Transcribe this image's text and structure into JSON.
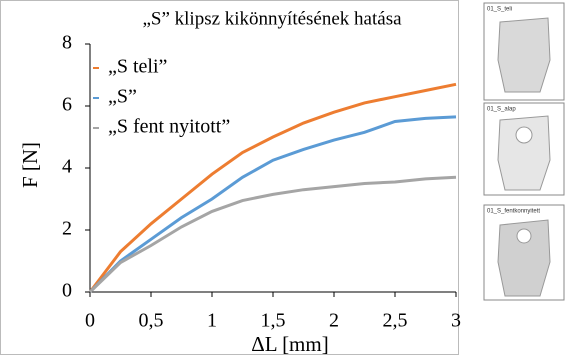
{
  "chart_data": {
    "type": "line",
    "title": "„S” klipsz kikönnyítésének hatása",
    "x_label": "ΔL [mm]",
    "y_label": "F [N]",
    "x": [
      0,
      0.25,
      0.5,
      0.75,
      1,
      1.25,
      1.5,
      1.75,
      2,
      2.25,
      2.5,
      2.75,
      3
    ],
    "series": [
      {
        "name": "„S teli”",
        "color": "#ed7d31",
        "values": [
          0,
          1.3,
          2.2,
          3.0,
          3.8,
          4.5,
          5.0,
          5.45,
          5.8,
          6.1,
          6.3,
          6.5,
          6.7
        ]
      },
      {
        "name": "„S”",
        "color": "#5b9bd5",
        "values": [
          0,
          1.0,
          1.7,
          2.4,
          3.0,
          3.7,
          4.25,
          4.6,
          4.9,
          5.15,
          5.5,
          5.6,
          5.65
        ]
      },
      {
        "name": "„S fent nyitott”",
        "color": "#a5a5a5",
        "values": [
          0,
          0.95,
          1.5,
          2.1,
          2.6,
          2.95,
          3.15,
          3.3,
          3.4,
          3.5,
          3.55,
          3.65,
          3.7
        ]
      }
    ],
    "xlim": [
      0,
      3
    ],
    "ylim": [
      0,
      8
    ],
    "xticks": [
      0,
      {
        "value": 0.5,
        "label": "0,5"
      },
      1,
      {
        "value": 1.5,
        "label": "1,5"
      },
      2,
      {
        "value": 2.5,
        "label": "2,5"
      },
      3
    ],
    "yticks": [
      0,
      2,
      4,
      6,
      8
    ],
    "grid": false,
    "legend": "upper-left"
  },
  "thumbnails": [
    {
      "caption": "01_S_teli"
    },
    {
      "caption": "01_S_alap"
    },
    {
      "caption": "01_S_fentkonnyitett"
    }
  ]
}
